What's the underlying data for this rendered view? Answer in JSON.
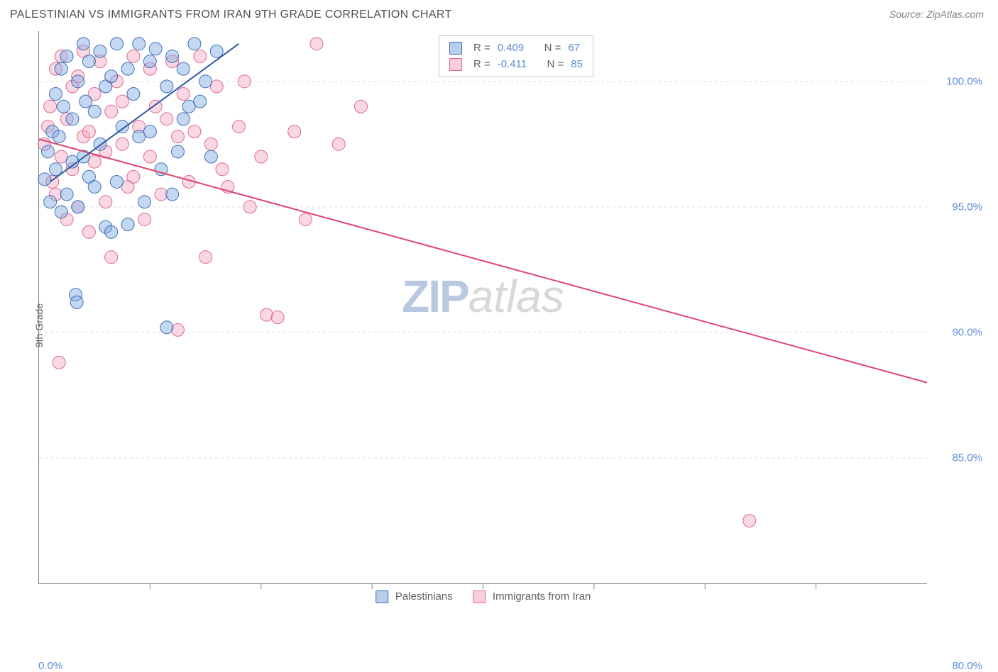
{
  "header": {
    "title": "PALESTINIAN VS IMMIGRANTS FROM IRAN 9TH GRADE CORRELATION CHART",
    "source": "Source: ZipAtlas.com"
  },
  "chart": {
    "type": "scatter",
    "ylabel": "9th Grade",
    "xlim": [
      0,
      80
    ],
    "ylim": [
      80,
      102
    ],
    "yticks": [
      85,
      90,
      95,
      100
    ],
    "ytick_labels": [
      "85.0%",
      "90.0%",
      "95.0%",
      "100.0%"
    ],
    "xtick_min_label": "0.0%",
    "xtick_max_label": "80.0%",
    "x_minor_ticks": [
      10,
      20,
      30,
      40,
      50,
      60,
      70
    ],
    "grid_color": "#dcdcdc",
    "background_color": "#ffffff",
    "marker_radius": 9,
    "marker_opacity": 0.45,
    "line_width": 2,
    "series": {
      "blue": {
        "label": "Palestinians",
        "fill": "#7fa8e0",
        "stroke": "#3f6fb8",
        "line_color": "#2c5aa0",
        "r_value": "0.409",
        "n_value": "67",
        "trend": {
          "x1": 1,
          "y1": 96.0,
          "x2": 18,
          "y2": 101.5
        },
        "points": [
          [
            0.5,
            96.1
          ],
          [
            0.8,
            97.2
          ],
          [
            1.0,
            95.2
          ],
          [
            1.2,
            98.0
          ],
          [
            1.5,
            99.5
          ],
          [
            1.5,
            96.5
          ],
          [
            1.8,
            97.8
          ],
          [
            2.0,
            94.8
          ],
          [
            2.0,
            100.5
          ],
          [
            2.2,
            99.0
          ],
          [
            2.5,
            95.5
          ],
          [
            2.5,
            101.0
          ],
          [
            3.0,
            98.5
          ],
          [
            3.0,
            96.8
          ],
          [
            3.3,
            91.5
          ],
          [
            3.4,
            91.2
          ],
          [
            3.5,
            100.0
          ],
          [
            3.5,
            95.0
          ],
          [
            4.0,
            101.5
          ],
          [
            4.0,
            97.0
          ],
          [
            4.2,
            99.2
          ],
          [
            4.5,
            96.2
          ],
          [
            4.5,
            100.8
          ],
          [
            5.0,
            98.8
          ],
          [
            5.0,
            95.8
          ],
          [
            5.5,
            101.2
          ],
          [
            5.5,
            97.5
          ],
          [
            6.0,
            99.8
          ],
          [
            6.0,
            94.2
          ],
          [
            6.5,
            94.0
          ],
          [
            6.5,
            100.2
          ],
          [
            7.0,
            101.5
          ],
          [
            7.0,
            96.0
          ],
          [
            7.5,
            98.2
          ],
          [
            8.0,
            94.3
          ],
          [
            8.0,
            100.5
          ],
          [
            8.5,
            99.5
          ],
          [
            9.0,
            101.5
          ],
          [
            9.0,
            97.8
          ],
          [
            9.5,
            95.2
          ],
          [
            10.0,
            100.8
          ],
          [
            10.0,
            98.0
          ],
          [
            10.5,
            101.3
          ],
          [
            11.0,
            96.5
          ],
          [
            11.5,
            99.8
          ],
          [
            11.5,
            90.2
          ],
          [
            12.0,
            101.0
          ],
          [
            12.5,
            97.2
          ],
          [
            13.0,
            100.5
          ],
          [
            13.0,
            98.5
          ],
          [
            14.0,
            101.5
          ],
          [
            14.5,
            99.2
          ],
          [
            15.0,
            100.0
          ],
          [
            15.5,
            97.0
          ],
          [
            16.0,
            101.2
          ],
          [
            13.5,
            99.0
          ],
          [
            12.0,
            95.5
          ]
        ]
      },
      "pink": {
        "label": "Immigrants from Iran",
        "fill": "#f5a8c0",
        "stroke": "#e06890",
        "line_color": "#e0446c",
        "r_value": "-0.411",
        "n_value": "85",
        "trend": {
          "x1": 0,
          "y1": 97.7,
          "x2": 80,
          "y2": 88.0
        },
        "points": [
          [
            0.5,
            97.5
          ],
          [
            0.8,
            98.2
          ],
          [
            1.0,
            99.0
          ],
          [
            1.2,
            96.0
          ],
          [
            1.5,
            100.5
          ],
          [
            1.5,
            95.5
          ],
          [
            2.0,
            97.0
          ],
          [
            2.0,
            101.0
          ],
          [
            1.8,
            88.8
          ],
          [
            2.5,
            98.5
          ],
          [
            2.5,
            94.5
          ],
          [
            3.0,
            99.8
          ],
          [
            3.0,
            96.5
          ],
          [
            3.5,
            100.2
          ],
          [
            3.5,
            95.0
          ],
          [
            4.0,
            97.8
          ],
          [
            4.0,
            101.2
          ],
          [
            4.5,
            98.0
          ],
          [
            4.5,
            94.0
          ],
          [
            5.0,
            99.5
          ],
          [
            5.0,
            96.8
          ],
          [
            5.5,
            100.8
          ],
          [
            6.0,
            97.2
          ],
          [
            6.0,
            95.2
          ],
          [
            6.5,
            98.8
          ],
          [
            6.5,
            93.0
          ],
          [
            7.0,
            100.0
          ],
          [
            7.5,
            97.5
          ],
          [
            7.5,
            99.2
          ],
          [
            8.0,
            95.8
          ],
          [
            8.5,
            101.0
          ],
          [
            8.5,
            96.2
          ],
          [
            9.0,
            98.2
          ],
          [
            9.5,
            94.5
          ],
          [
            10.0,
            100.5
          ],
          [
            10.0,
            97.0
          ],
          [
            10.5,
            99.0
          ],
          [
            11.0,
            95.5
          ],
          [
            11.5,
            98.5
          ],
          [
            12.0,
            100.8
          ],
          [
            12.5,
            97.8
          ],
          [
            12.5,
            90.1
          ],
          [
            13.0,
            99.5
          ],
          [
            13.5,
            96.0
          ],
          [
            14.0,
            98.0
          ],
          [
            14.5,
            101.0
          ],
          [
            15.0,
            93.0
          ],
          [
            15.5,
            97.5
          ],
          [
            16.0,
            99.8
          ],
          [
            16.5,
            96.5
          ],
          [
            17.0,
            95.8
          ],
          [
            18.0,
            98.2
          ],
          [
            18.5,
            100.0
          ],
          [
            19.0,
            95.0
          ],
          [
            20.0,
            97.0
          ],
          [
            20.5,
            90.7
          ],
          [
            21.5,
            90.6
          ],
          [
            23.0,
            98.0
          ],
          [
            24.0,
            94.5
          ],
          [
            25.0,
            101.5
          ],
          [
            27.0,
            97.5
          ],
          [
            29.0,
            99.0
          ],
          [
            64.0,
            82.5
          ]
        ]
      }
    },
    "stats_labels": {
      "r": "R =",
      "n": "N ="
    },
    "bottom_legend_gap": 28,
    "watermark": {
      "zip": "ZIP",
      "atlas": "atlas"
    }
  }
}
